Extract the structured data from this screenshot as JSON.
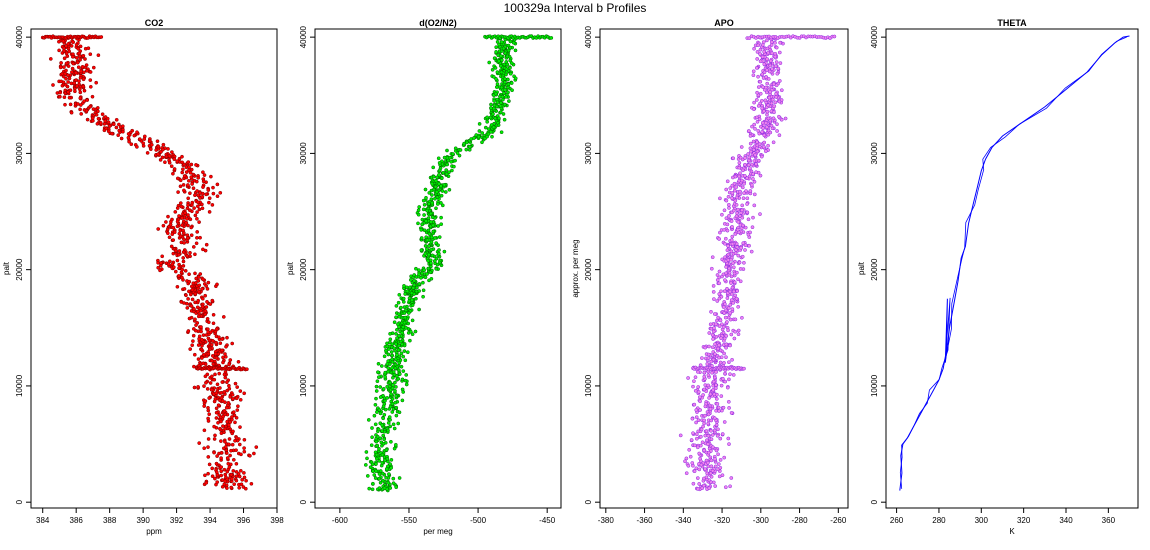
{
  "figure_title": "100329a   Interval b Profiles",
  "chart_data": [
    {
      "type": "scatter",
      "title": "CO2",
      "xlabel": "ppm",
      "ylabel": "palt",
      "xlim": [
        383.3,
        398.0
      ],
      "ylim": [
        -500,
        40700
      ],
      "xticks": [
        384,
        386,
        388,
        390,
        392,
        394,
        396,
        398
      ],
      "yticks": [
        0,
        10000,
        20000,
        30000,
        40000
      ],
      "point_fill": "#ff0000",
      "point_edge": "#7a0000",
      "profile": [
        [
          395.2,
          1000
        ],
        [
          395.0,
          3000
        ],
        [
          395.0,
          5000
        ],
        [
          394.8,
          7000
        ],
        [
          394.6,
          9000
        ],
        [
          394.6,
          11000
        ],
        [
          394.2,
          13000
        ],
        [
          393.6,
          15000
        ],
        [
          393.2,
          17000
        ],
        [
          393.2,
          19000
        ],
        [
          391.6,
          20500
        ],
        [
          392.6,
          22000
        ],
        [
          392.0,
          23500
        ],
        [
          392.8,
          25000
        ],
        [
          393.6,
          26500
        ],
        [
          392.8,
          28000
        ],
        [
          392.0,
          29500
        ],
        [
          390.0,
          31000
        ],
        [
          388.6,
          32000
        ],
        [
          387.2,
          33000
        ],
        [
          385.8,
          35000
        ],
        [
          386.0,
          37000
        ],
        [
          385.8,
          39000
        ],
        [
          385.5,
          40000
        ]
      ],
      "spread": 0.9,
      "horizontal_bursts": [
        {
          "y": 40000,
          "x_from": 384.0,
          "x_to": 387.5
        },
        {
          "y": 11500,
          "x_from": 393.2,
          "x_to": 396.2
        }
      ]
    },
    {
      "type": "scatter",
      "title": "d(O2/N2)",
      "xlabel": "per meg",
      "ylabel": "palt",
      "xlim": [
        -618,
        -440
      ],
      "ylim": [
        -500,
        40700
      ],
      "xticks": [
        -600,
        -550,
        -500,
        -450
      ],
      "yticks": [
        0,
        10000,
        20000,
        30000,
        40000
      ],
      "point_fill": "#00ee00",
      "point_edge": "#006000",
      "profile": [
        [
          -568,
          1000
        ],
        [
          -570,
          3000
        ],
        [
          -570,
          5000
        ],
        [
          -568,
          7000
        ],
        [
          -565,
          9000
        ],
        [
          -563,
          11000
        ],
        [
          -560,
          13000
        ],
        [
          -555,
          15000
        ],
        [
          -552,
          17000
        ],
        [
          -545,
          19000
        ],
        [
          -532,
          20500
        ],
        [
          -535,
          22000
        ],
        [
          -535,
          23500
        ],
        [
          -535,
          25000
        ],
        [
          -530,
          27000
        ],
        [
          -525,
          29000
        ],
        [
          -510,
          30500
        ],
        [
          -490,
          32000
        ],
        [
          -485,
          34000
        ],
        [
          -480,
          36000
        ],
        [
          -482,
          38000
        ],
        [
          -480,
          40000
        ]
      ],
      "spread": 7,
      "horizontal_bursts": [
        {
          "y": 40000,
          "x_from": -495,
          "x_to": -447
        }
      ]
    },
    {
      "type": "scatter",
      "title": "APO",
      "xlabel": "",
      "ylabel": "approx. per meg",
      "xlim": [
        -383,
        -255
      ],
      "ylim": [
        -500,
        40700
      ],
      "xticks": [
        -380,
        -360,
        -340,
        -320,
        -300,
        -280,
        -260
      ],
      "yticks": [
        0,
        10000,
        20000,
        30000,
        40000
      ],
      "point_fill": "#ee82ee",
      "point_edge": "#8a2be2",
      "profile": [
        [
          -327,
          1000
        ],
        [
          -328,
          3000
        ],
        [
          -328,
          5000
        ],
        [
          -327,
          7000
        ],
        [
          -326,
          9000
        ],
        [
          -325,
          11000
        ],
        [
          -322,
          13000
        ],
        [
          -320,
          15000
        ],
        [
          -318,
          17000
        ],
        [
          -317,
          19000
        ],
        [
          -315,
          21000
        ],
        [
          -313,
          23000
        ],
        [
          -312,
          25000
        ],
        [
          -310,
          27000
        ],
        [
          -307,
          29000
        ],
        [
          -300,
          31000
        ],
        [
          -296,
          33000
        ],
        [
          -295,
          35000
        ],
        [
          -296,
          37000
        ],
        [
          -296,
          39000
        ],
        [
          -296,
          40000
        ]
      ],
      "spread": 7,
      "horizontal_bursts": [
        {
          "y": 40000,
          "x_from": -307,
          "x_to": -262
        },
        {
          "y": 11500,
          "x_from": -335,
          "x_to": -308
        }
      ]
    },
    {
      "type": "line",
      "title": "THETA",
      "xlabel": "K",
      "ylabel": "palt",
      "xlim": [
        255,
        374
      ],
      "ylim": [
        -500,
        40700
      ],
      "xticks": [
        260,
        280,
        300,
        320,
        340,
        360
      ],
      "yticks": [
        0,
        10000,
        20000,
        30000,
        40000
      ],
      "line_color": "#0000ff",
      "x": [
        261.5,
        262.5,
        262.0,
        263.0,
        265.0,
        268.0,
        271.0,
        274.0,
        277.0,
        280.0,
        282.0,
        283.5,
        284.0,
        283.0,
        285.0,
        287.0,
        289.0,
        290.5,
        292.5,
        294.0,
        296.0,
        298.0,
        300.0,
        302.0,
        305.0,
        310.0,
        318.0,
        330.0,
        340.0,
        350.0,
        357.0,
        363.0,
        367.0,
        370.0
      ],
      "y": [
        1000,
        2500,
        4000,
        5000,
        5500,
        6500,
        7500,
        8500,
        9500,
        10500,
        11500,
        13000,
        17500,
        12000,
        15000,
        17000,
        19000,
        21000,
        22000,
        24000,
        25500,
        27000,
        28500,
        29500,
        30500,
        31500,
        32500,
        34000,
        35500,
        37000,
        38500,
        39500,
        40000,
        40100
      ]
    }
  ]
}
